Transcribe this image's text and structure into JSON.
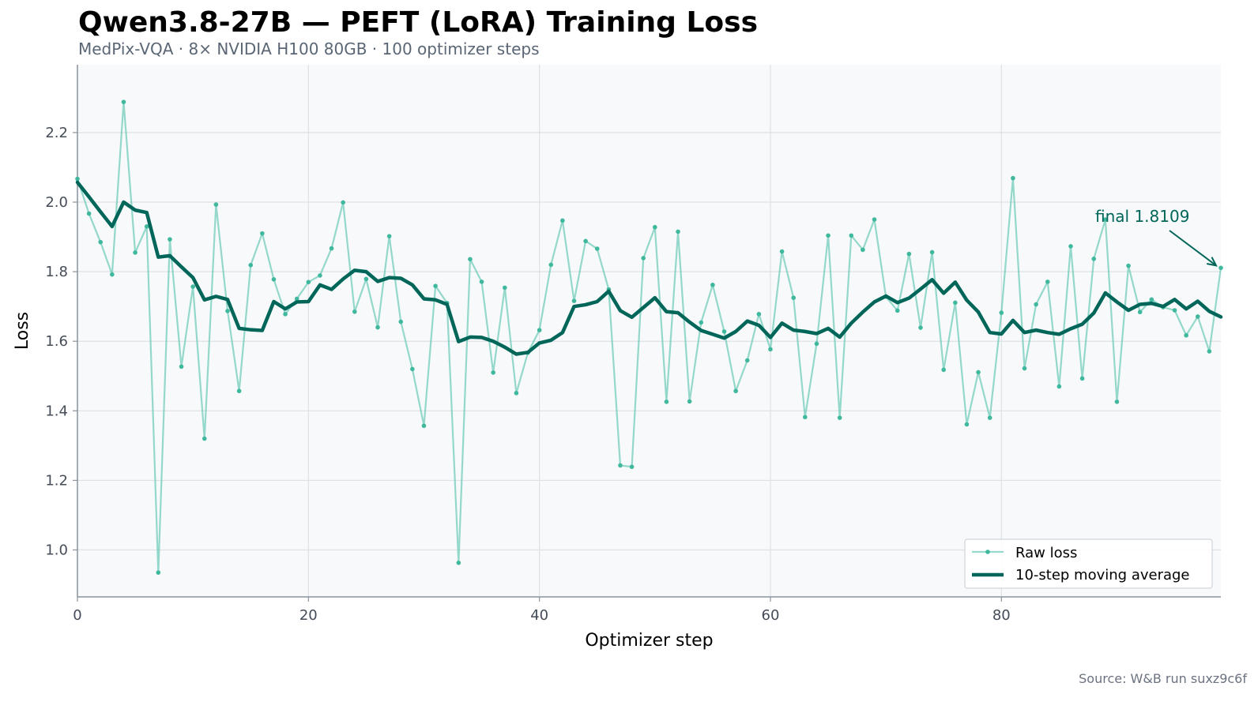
{
  "title": "Qwen3.8-27B — PEFT (LoRA) Training Loss",
  "subtitle": "MedPix-VQA · 8× NVIDIA H100 80GB · 100 optimizer steps",
  "source": "Source: W&B run suxz9c6f",
  "colors": {
    "raw": "#5cc6b0",
    "raw_point": "#3fb89e",
    "avg": "#00665a",
    "plot_bg": "#f8f9fa",
    "grid": "#dde1e6",
    "axis": "#8a939e",
    "annotation": "#00665a"
  },
  "chart_data": {
    "type": "line",
    "title": "Qwen3.8-27B — PEFT (LoRA) Training Loss",
    "subtitle": "MedPix-VQA · 8× NVIDIA H100 80GB · 100 optimizer steps",
    "xlabel": "Optimizer step",
    "ylabel": "Loss",
    "xlim": [
      0,
      99
    ],
    "ylim": [
      0.865,
      2.395
    ],
    "xticks": [
      0,
      20,
      40,
      60,
      80
    ],
    "yticks": [
      1.0,
      1.2,
      1.4,
      1.6,
      1.8,
      2.0,
      2.2
    ],
    "xtick_labels": [
      "0",
      "20",
      "40",
      "60",
      "80"
    ],
    "ytick_labels": [
      "1.0",
      "1.2",
      "1.4",
      "1.6",
      "1.8",
      "2.0",
      "2.2"
    ],
    "grid": true,
    "legend_position": "bottom-right",
    "x": [
      0,
      1,
      2,
      3,
      4,
      5,
      6,
      7,
      8,
      9,
      10,
      11,
      12,
      13,
      14,
      15,
      16,
      17,
      18,
      19,
      20,
      21,
      22,
      23,
      24,
      25,
      26,
      27,
      28,
      29,
      30,
      31,
      32,
      33,
      34,
      35,
      36,
      37,
      38,
      39,
      40,
      41,
      42,
      43,
      44,
      45,
      46,
      47,
      48,
      49,
      50,
      51,
      52,
      53,
      54,
      55,
      56,
      57,
      58,
      59,
      60,
      61,
      62,
      63,
      64,
      65,
      66,
      67,
      68,
      69,
      70,
      71,
      72,
      73,
      74,
      75,
      76,
      77,
      78,
      79,
      80,
      81,
      82,
      83,
      84,
      85,
      86,
      87,
      88,
      89,
      90,
      91,
      92,
      93,
      94,
      95,
      96,
      97,
      98,
      99
    ],
    "series": [
      {
        "name": "Raw loss",
        "style": "thin line with dot markers",
        "values": [
          2.067,
          1.967,
          1.885,
          1.792,
          2.288,
          1.855,
          1.93,
          0.935,
          1.893,
          1.527,
          1.757,
          1.32,
          1.993,
          1.687,
          1.457,
          1.819,
          1.91,
          1.778,
          1.678,
          1.722,
          1.77,
          1.789,
          1.867,
          1.999,
          1.685,
          1.779,
          1.64,
          1.902,
          1.656,
          1.52,
          1.357,
          1.759,
          1.71,
          0.963,
          1.836,
          1.771,
          1.51,
          1.754,
          1.451,
          1.567,
          1.632,
          1.82,
          1.947,
          1.716,
          1.888,
          1.866,
          1.749,
          1.243,
          1.239,
          1.839,
          1.928,
          1.426,
          1.915,
          1.427,
          1.654,
          1.762,
          1.628,
          1.457,
          1.545,
          1.678,
          1.577,
          1.858,
          1.725,
          1.382,
          1.593,
          1.904,
          1.38,
          1.904,
          1.863,
          1.95,
          1.728,
          1.688,
          1.851,
          1.639,
          1.856,
          1.518,
          1.711,
          1.361,
          1.511,
          1.38,
          1.682,
          2.069,
          1.522,
          1.706,
          1.771,
          1.47,
          1.873,
          1.493,
          1.837,
          1.95,
          1.426,
          1.817,
          1.684,
          1.72,
          1.698,
          1.689,
          1.617,
          1.671,
          1.571,
          1.811
        ]
      },
      {
        "name": "10-step moving average",
        "style": "thick line",
        "values": [
          2.057,
          2.015,
          1.972,
          1.93,
          2.0,
          1.977,
          1.97,
          1.842,
          1.846,
          1.814,
          1.783,
          1.719,
          1.729,
          1.72,
          1.637,
          1.633,
          1.631,
          1.714,
          1.693,
          1.713,
          1.714,
          1.762,
          1.749,
          1.779,
          1.804,
          1.8,
          1.772,
          1.783,
          1.781,
          1.762,
          1.722,
          1.719,
          1.706,
          1.599,
          1.612,
          1.611,
          1.6,
          1.583,
          1.563,
          1.568,
          1.595,
          1.603,
          1.625,
          1.7,
          1.705,
          1.714,
          1.744,
          1.688,
          1.669,
          1.697,
          1.725,
          1.685,
          1.682,
          1.655,
          1.631,
          1.62,
          1.609,
          1.628,
          1.658,
          1.646,
          1.611,
          1.652,
          1.632,
          1.628,
          1.622,
          1.637,
          1.612,
          1.652,
          1.684,
          1.713,
          1.73,
          1.711,
          1.724,
          1.75,
          1.777,
          1.738,
          1.77,
          1.718,
          1.684,
          1.625,
          1.621,
          1.66,
          1.625,
          1.632,
          1.625,
          1.62,
          1.636,
          1.649,
          1.681,
          1.739,
          1.713,
          1.689,
          1.706,
          1.709,
          1.7,
          1.72,
          1.693,
          1.715,
          1.686,
          1.67
        ]
      }
    ],
    "annotations": [
      {
        "text": "final 1.8109",
        "x": 99,
        "y": 1.8109
      }
    ]
  }
}
